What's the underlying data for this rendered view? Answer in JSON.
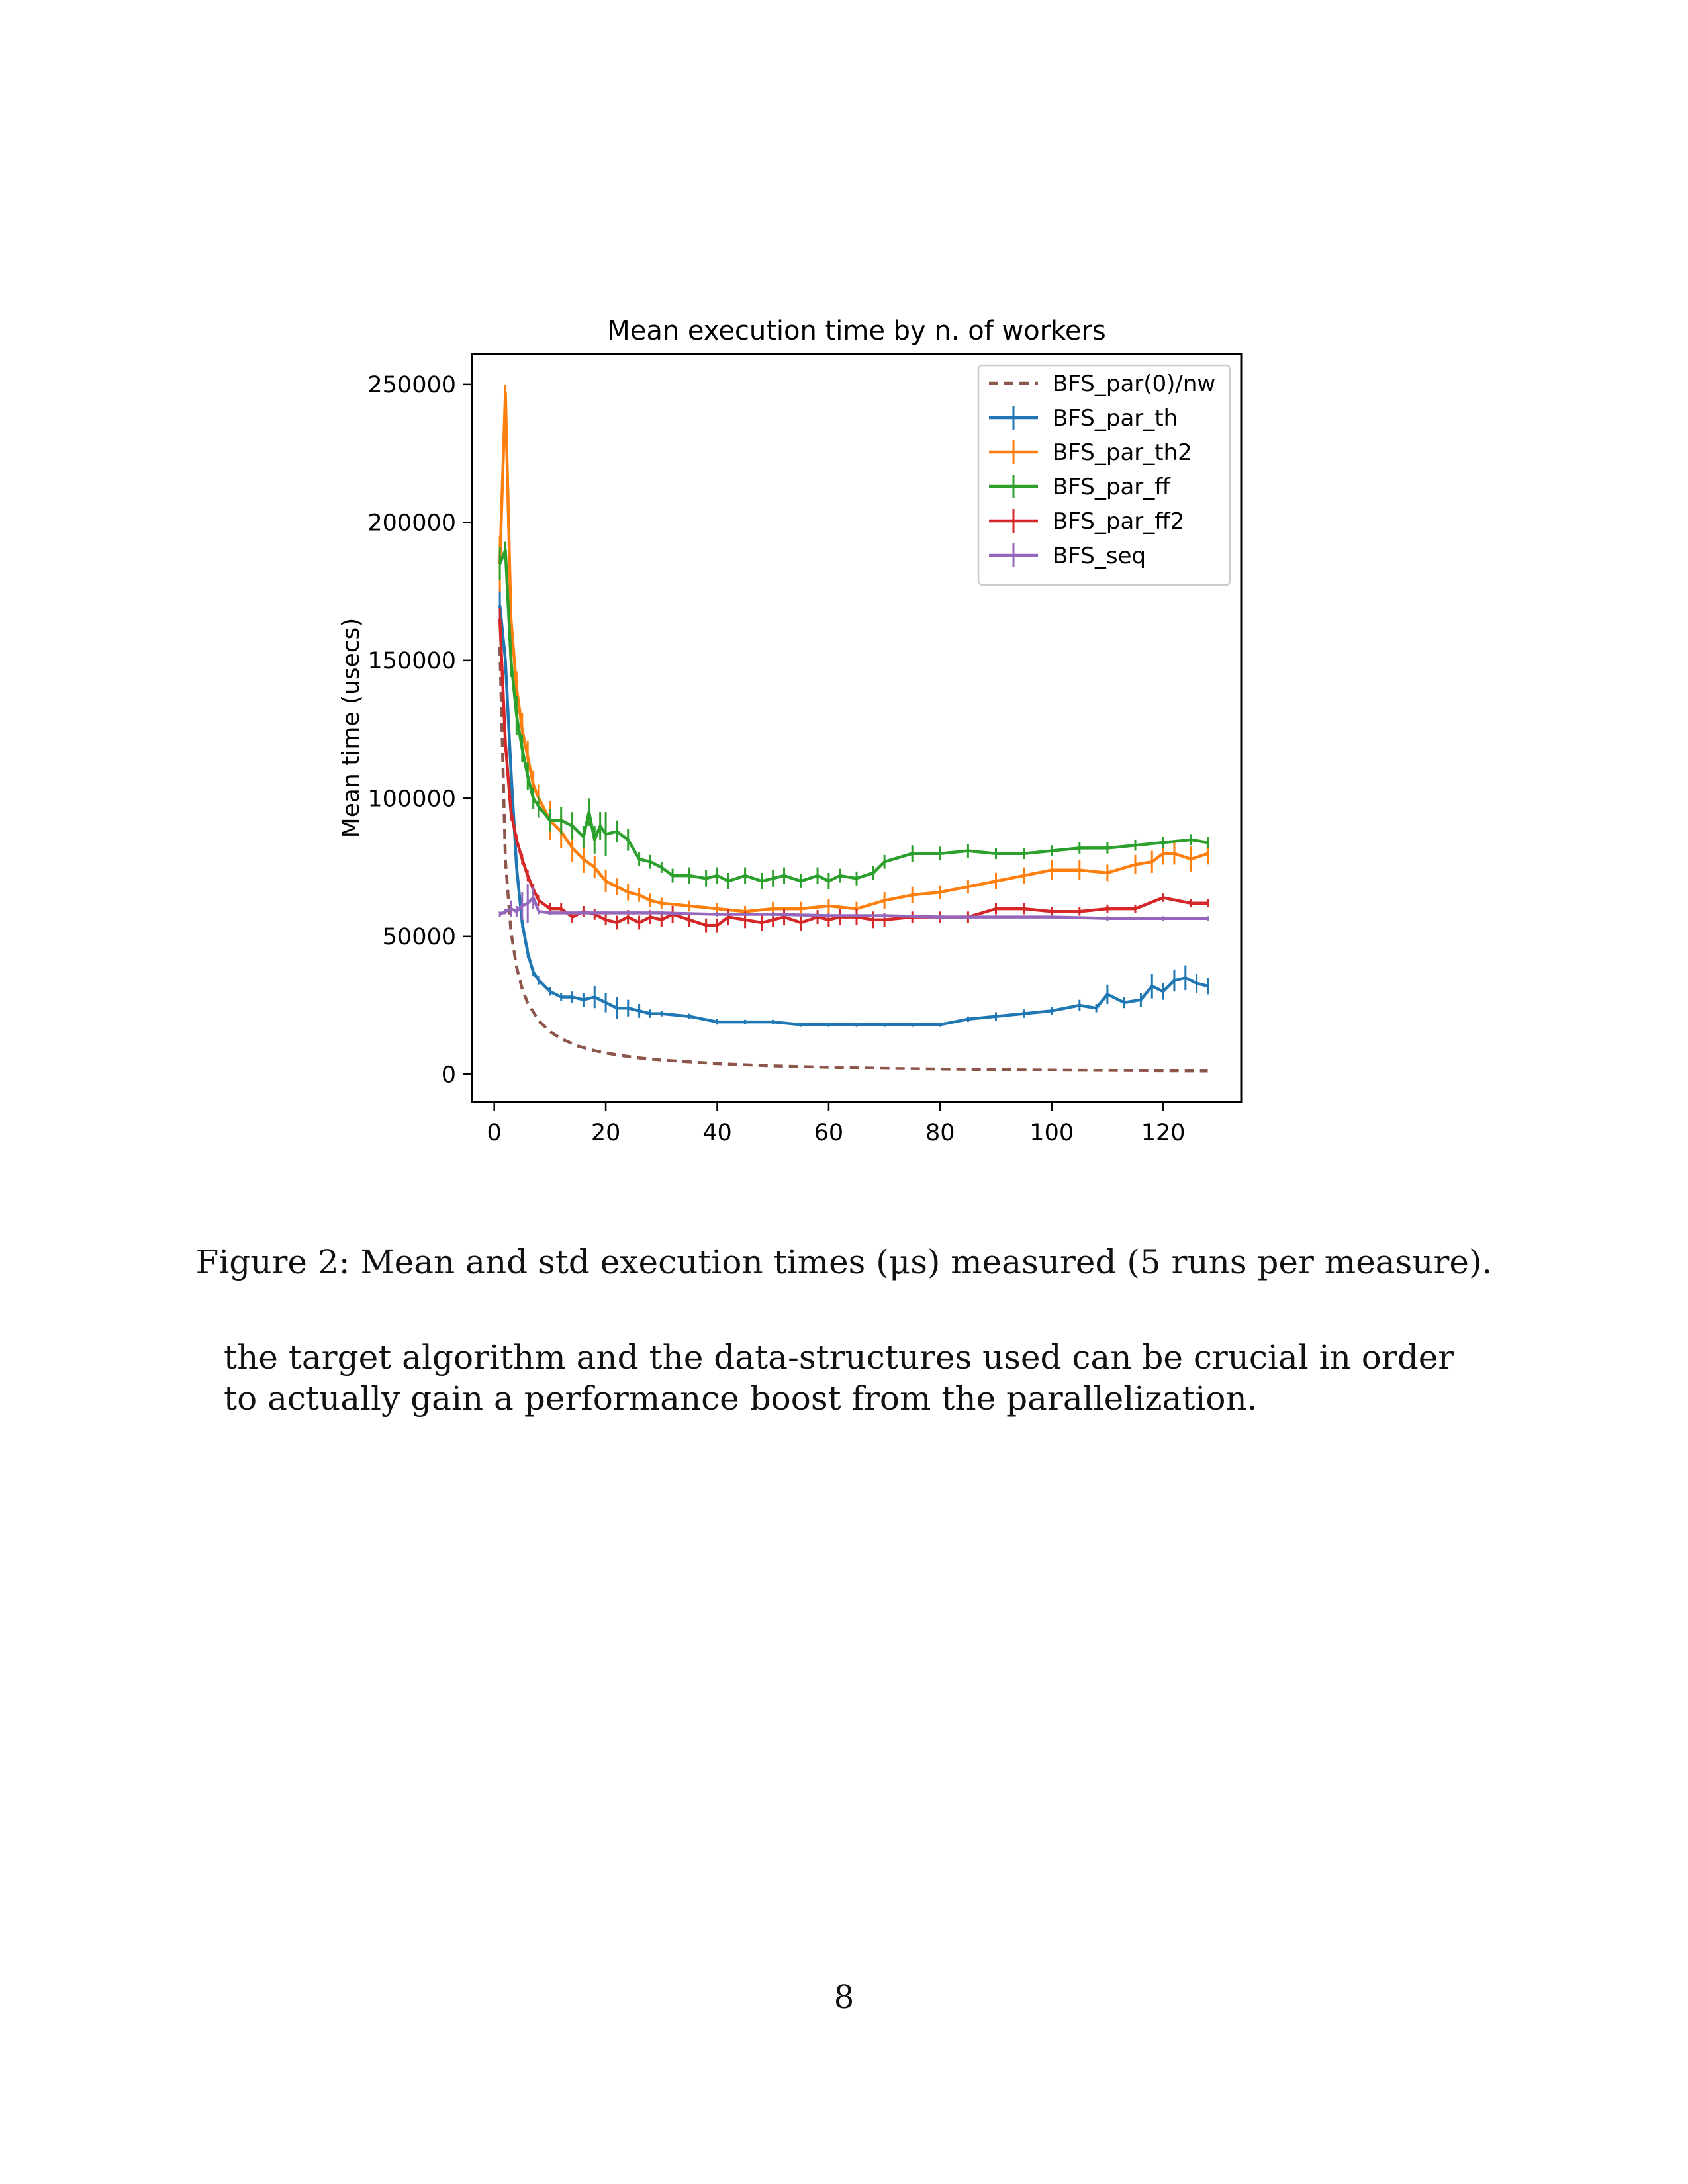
{
  "chart_data": {
    "type": "line",
    "title": "Mean execution time by n. of workers",
    "xlabel": "",
    "ylabel": "Mean time (usecs)",
    "xlim": [
      -4,
      134
    ],
    "ylim": [
      -10000,
      261000
    ],
    "x_ticks": [
      0,
      20,
      40,
      60,
      80,
      100,
      120
    ],
    "y_ticks": [
      0,
      50000,
      100000,
      150000,
      200000,
      250000
    ],
    "legend_position": "top-right",
    "grid": false,
    "series": [
      {
        "name": "BFS_par(0)/nw",
        "color": "#8c564b",
        "style": "dashed",
        "x": [
          1,
          2,
          3,
          4,
          5,
          6,
          8,
          10,
          12,
          15,
          18,
          20,
          25,
          30,
          40,
          50,
          60,
          70,
          80,
          90,
          100,
          110,
          120,
          128
        ],
        "y": [
          155000,
          77500,
          51700,
          38800,
          31000,
          25800,
          19400,
          15500,
          12900,
          10300,
          8600,
          7750,
          6200,
          5200,
          3900,
          3100,
          2600,
          2200,
          1940,
          1720,
          1550,
          1410,
          1290,
          1210
        ]
      },
      {
        "name": "BFS_par_th",
        "color": "#1f77b4",
        "style": "errorbar",
        "x": [
          1,
          2,
          3,
          4,
          5,
          6,
          7,
          8,
          10,
          12,
          14,
          16,
          18,
          20,
          22,
          24,
          26,
          28,
          30,
          35,
          40,
          45,
          50,
          55,
          60,
          65,
          70,
          75,
          80,
          85,
          90,
          95,
          100,
          105,
          108,
          110,
          113,
          116,
          118,
          120,
          122,
          124,
          126,
          128
        ],
        "y": [
          170000,
          150000,
          110000,
          75000,
          55000,
          44000,
          37000,
          34000,
          30000,
          28000,
          28000,
          27000,
          28000,
          26000,
          24000,
          24000,
          23000,
          22000,
          22000,
          21000,
          19000,
          19000,
          19000,
          18000,
          18000,
          18000,
          18000,
          18000,
          18000,
          20000,
          21000,
          22000,
          23000,
          25000,
          24000,
          29000,
          26000,
          27000,
          32000,
          30000,
          34000,
          35000,
          33000,
          32000
        ],
        "err": [
          7000,
          5000,
          4000,
          3000,
          2000,
          2000,
          1500,
          1500,
          1500,
          1500,
          2000,
          2500,
          4000,
          3500,
          4000,
          3000,
          2500,
          1500,
          1000,
          1000,
          1000,
          800,
          800,
          800,
          800,
          800,
          800,
          800,
          800,
          1000,
          1500,
          1500,
          1500,
          2000,
          1500,
          3500,
          2000,
          2500,
          4500,
          3000,
          4000,
          4500,
          3500,
          3000
        ]
      },
      {
        "name": "BFS_par_th2",
        "color": "#ff7f0e",
        "style": "errorbar",
        "x": [
          1,
          2,
          3,
          4,
          5,
          6,
          7,
          8,
          10,
          12,
          14,
          16,
          18,
          20,
          22,
          24,
          26,
          28,
          30,
          35,
          40,
          45,
          50,
          55,
          60,
          65,
          70,
          75,
          80,
          85,
          90,
          95,
          100,
          105,
          110,
          115,
          118,
          120,
          122,
          125,
          128
        ],
        "y": [
          185000,
          247000,
          165000,
          140000,
          125000,
          115000,
          105000,
          100000,
          92000,
          88000,
          82000,
          78000,
          75000,
          70000,
          68000,
          66000,
          65000,
          63000,
          62000,
          61000,
          60000,
          59000,
          60000,
          60000,
          61000,
          60000,
          63000,
          65000,
          66000,
          68000,
          70000,
          72000,
          74000,
          74000,
          73000,
          76000,
          77000,
          80000,
          80000,
          78000,
          80000
        ],
        "err": [
          10000,
          3000,
          8000,
          6000,
          6000,
          6000,
          5000,
          5000,
          7000,
          6000,
          5000,
          5000,
          4000,
          4000,
          3000,
          3000,
          2500,
          2500,
          2000,
          2000,
          2000,
          2000,
          2500,
          2500,
          2500,
          2500,
          3000,
          3000,
          2500,
          2500,
          3000,
          3000,
          3500,
          3500,
          3000,
          3500,
          4000,
          4000,
          4000,
          4500,
          4000
        ]
      },
      {
        "name": "BFS_par_ff",
        "color": "#2ca02c",
        "style": "errorbar",
        "x": [
          1,
          2,
          3,
          4,
          5,
          6,
          7,
          8,
          10,
          12,
          14,
          16,
          17,
          18,
          19,
          20,
          22,
          24,
          26,
          28,
          30,
          32,
          35,
          38,
          40,
          42,
          45,
          48,
          50,
          52,
          55,
          58,
          60,
          62,
          65,
          68,
          70,
          75,
          80,
          85,
          90,
          95,
          100,
          105,
          110,
          115,
          120,
          125,
          128
        ],
        "y": [
          185000,
          190000,
          150000,
          130000,
          118000,
          108000,
          100000,
          97000,
          92000,
          92000,
          90000,
          86000,
          95000,
          85000,
          90000,
          87000,
          88000,
          85000,
          78000,
          77000,
          75000,
          72000,
          72000,
          71000,
          72000,
          70000,
          72000,
          70000,
          71000,
          72000,
          70000,
          72000,
          70000,
          72000,
          71000,
          73000,
          77000,
          80000,
          80000,
          81000,
          80000,
          80000,
          81000,
          82000,
          82000,
          83000,
          84000,
          85000,
          84000
        ],
        "err": [
          6000,
          3000,
          6000,
          7000,
          5000,
          5000,
          4000,
          4000,
          4000,
          5000,
          5000,
          4000,
          5000,
          5000,
          5000,
          8000,
          4000,
          4000,
          2500,
          2500,
          2000,
          2500,
          3000,
          3000,
          3000,
          3000,
          3000,
          3000,
          3000,
          3000,
          2500,
          3000,
          3000,
          2500,
          2500,
          2500,
          2500,
          3000,
          2500,
          2500,
          2000,
          2000,
          2000,
          2000,
          2000,
          2000,
          2000,
          2000,
          2000
        ]
      },
      {
        "name": "BFS_par_ff2",
        "color": "#d62728",
        "style": "errorbar",
        "x": [
          1,
          2,
          3,
          4,
          5,
          6,
          7,
          8,
          10,
          12,
          14,
          16,
          18,
          20,
          22,
          24,
          26,
          28,
          30,
          32,
          35,
          38,
          40,
          42,
          45,
          48,
          50,
          52,
          55,
          58,
          60,
          62,
          65,
          68,
          70,
          75,
          80,
          85,
          90,
          95,
          100,
          105,
          110,
          115,
          120,
          125,
          128
        ],
        "y": [
          165000,
          120000,
          95000,
          85000,
          78000,
          72000,
          67000,
          63000,
          60000,
          60000,
          57000,
          59000,
          58000,
          56000,
          55000,
          57000,
          55000,
          57000,
          56000,
          58000,
          56000,
          54000,
          54000,
          57000,
          56000,
          55000,
          56000,
          57000,
          55000,
          57000,
          56000,
          57000,
          57000,
          56000,
          56000,
          57000,
          57000,
          57000,
          60000,
          60000,
          59000,
          59000,
          60000,
          60000,
          64000,
          62000,
          62000
        ],
        "err": [
          4000,
          3000,
          3000,
          2000,
          2000,
          2000,
          2000,
          2000,
          2000,
          2000,
          2000,
          2000,
          2000,
          2000,
          2500,
          2500,
          2500,
          2500,
          2500,
          3000,
          2500,
          2500,
          2500,
          3000,
          3000,
          3000,
          2500,
          3000,
          3000,
          2500,
          2500,
          3000,
          3000,
          3000,
          2500,
          2000,
          2000,
          2000,
          2000,
          2000,
          1500,
          1500,
          1500,
          1500,
          1500,
          1500,
          1500
        ]
      },
      {
        "name": "BFS_seq",
        "color": "#9467bd",
        "style": "errorbar",
        "x": [
          1,
          2,
          3,
          4,
          5,
          6,
          7,
          8,
          10,
          15,
          20,
          25,
          30,
          40,
          50,
          60,
          70,
          80,
          90,
          100,
          110,
          120,
          128
        ],
        "y": [
          58000,
          59000,
          60000,
          59000,
          61000,
          62000,
          64000,
          59000,
          58500,
          58500,
          58500,
          58500,
          58500,
          58000,
          58000,
          57500,
          57500,
          57000,
          57000,
          57000,
          56500,
          56500,
          56500
        ],
        "err": [
          1000,
          1000,
          3000,
          2000,
          5000,
          7000,
          4000,
          1000,
          800,
          800,
          800,
          800,
          800,
          800,
          800,
          800,
          800,
          800,
          800,
          800,
          800,
          800,
          800
        ]
      }
    ]
  },
  "figure": {
    "caption": "Figure 2: Mean and std execution times (μs) measured (5 runs per measure)."
  },
  "body": {
    "paragraph": "the target algorithm and the data-structures used can be crucial in order to actually gain a performance boost from the parallelization."
  },
  "page": {
    "number": "8"
  }
}
